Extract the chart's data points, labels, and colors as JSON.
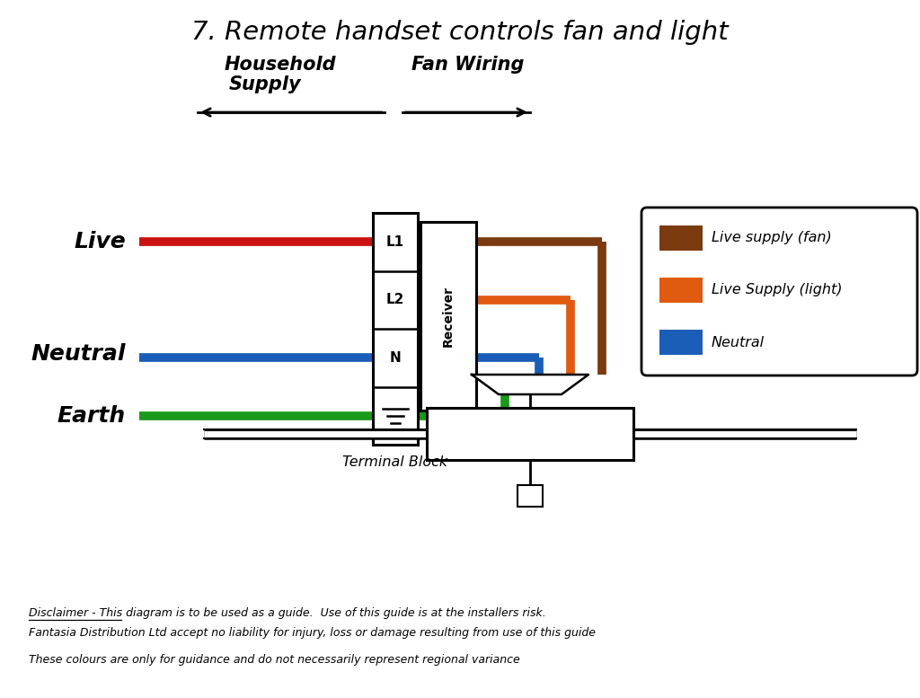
{
  "title": "7. Remote handset controls fan and light",
  "title_fontsize": 21,
  "bg_color": "#ffffff",
  "wire_lw": 7,
  "red": "#cc1111",
  "blue": "#1a5eb8",
  "green": "#1a9a1a",
  "brown": "#7b3a10",
  "orange": "#e05a10",
  "household_label1": "Household",
  "household_label2": "Supply",
  "fan_wiring_label": "Fan Wiring",
  "label_live": "Live",
  "label_neutral": "Neutral",
  "label_earth": "Earth",
  "label_terminal": "Terminal Block",
  "label_receiver": "Receiver",
  "legend_entries": [
    {
      "color": "#7b3a10",
      "label": "Live supply (fan)"
    },
    {
      "color": "#e05a10",
      "label": "Live Supply (light)"
    },
    {
      "color": "#1a5eb8",
      "label": "Neutral"
    }
  ],
  "disclaimer1": "Disclaimer - This diagram is to be used as a guide.  Use of this guide is at the installers risk.",
  "disclaimer2": "Fantasia Distribution Ltd accept no liability for injury, loss or damage resulting from use of this guide",
  "disclaimer3": "These colours are only for guidance and do not necessarily represent regional variance"
}
